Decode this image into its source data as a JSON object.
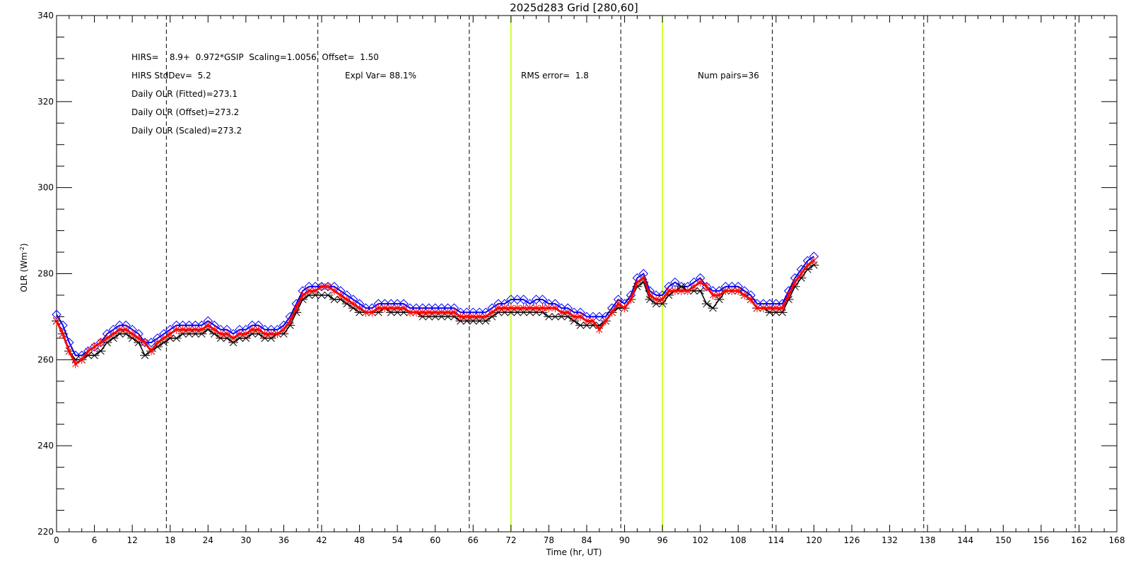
{
  "chart_data": {
    "type": "line",
    "title": "2025d283 Grid [280,60]",
    "xlabel": "Time (hr, UT)",
    "ylabel": "OLR (Wm",
    "ylabel_sup": "-2",
    "ylabel_close": ")",
    "xlim": [
      0,
      168
    ],
    "ylim": [
      220,
      340
    ],
    "xticks": [
      0,
      6,
      12,
      18,
      24,
      30,
      36,
      42,
      48,
      54,
      60,
      66,
      72,
      78,
      84,
      90,
      96,
      102,
      108,
      114,
      120,
      126,
      132,
      138,
      144,
      150,
      156,
      162,
      168
    ],
    "yticks": [
      220,
      240,
      260,
      280,
      300,
      320,
      340
    ],
    "dashed_vlines": [
      17.4,
      41.4,
      65.4,
      89.4,
      113.4,
      137.4,
      161.4
    ],
    "highlight_vlines": [
      72,
      96
    ],
    "colors": {
      "hirs": "#000000",
      "fitted": "#0000ff",
      "offset": "#ff0000",
      "highlight": "#c0ff00"
    },
    "annotations": [
      {
        "text": "HIRS=    8.9+  0.972*GSIP  Scaling=1.0056  Offset=  1.50"
      },
      {
        "text": "HIRS StdDev=  5.2"
      },
      {
        "text": "Expl Var= 88.1%"
      },
      {
        "text": "RMS error=  1.8"
      },
      {
        "text": "Num pairs=36"
      },
      {
        "text": "Daily OLR (Fitted)=273.1"
      },
      {
        "text": "Daily OLR (Offset)=273.2"
      },
      {
        "text": "Daily OLR (Scaled)=273.2"
      }
    ],
    "series": [
      {
        "x": [
          0,
          1,
          2,
          3,
          4,
          5,
          6,
          7,
          8,
          9,
          10,
          11,
          12,
          13,
          14,
          15,
          16,
          17,
          18,
          19,
          20,
          21,
          22,
          23,
          24,
          25,
          26,
          27,
          28,
          29,
          30,
          31,
          32,
          33,
          34,
          35,
          36,
          37,
          38,
          39,
          40,
          41,
          42,
          43,
          44,
          45,
          46,
          47,
          48,
          49,
          50,
          51,
          52,
          53,
          54,
          55,
          56,
          57,
          58,
          59,
          60,
          61,
          62,
          63,
          64,
          65,
          66,
          67,
          68,
          69,
          70,
          71,
          72,
          73,
          74,
          75,
          76,
          77,
          78,
          79,
          80,
          81,
          82,
          83,
          84,
          85,
          86,
          87,
          88,
          89,
          90,
          91,
          92,
          93,
          94,
          95,
          96,
          97,
          98,
          99,
          100,
          101,
          102,
          103,
          104,
          105,
          106,
          107,
          108,
          109,
          110,
          111,
          112,
          113,
          114,
          115,
          116,
          117,
          118,
          119,
          120
        ],
        "y": [
          269,
          266,
          262,
          260,
          260,
          261,
          261,
          262,
          264,
          265,
          266,
          266,
          265,
          264,
          261,
          262,
          263,
          264,
          265,
          265,
          266,
          266,
          266,
          266,
          267,
          266,
          265,
          265,
          264,
          265,
          265,
          266,
          266,
          265,
          265,
          266,
          266,
          268,
          271,
          274,
          275,
          275,
          275,
          275,
          274,
          274,
          273,
          272,
          271,
          271,
          271,
          271,
          272,
          271,
          271,
          271,
          271,
          271,
          270,
          270,
          270,
          270,
          270,
          270,
          269,
          269,
          269,
          269,
          269,
          270,
          271,
          271,
          271,
          271,
          271,
          271,
          271,
          271,
          270,
          270,
          270,
          270,
          269,
          268,
          268,
          268,
          268,
          269,
          271,
          272,
          272,
          274,
          277,
          278,
          274,
          273,
          273,
          275,
          276,
          277,
          276,
          276,
          276,
          273,
          272,
          274,
          276,
          276,
          276,
          275,
          274,
          272,
          272,
          271,
          271,
          271,
          274,
          277,
          279,
          281,
          282
        ]
      },
      {
        "x": [
          0,
          1,
          2,
          3,
          4,
          5,
          6,
          7,
          8,
          9,
          10,
          11,
          12,
          13,
          14,
          15,
          16,
          17,
          18,
          19,
          20,
          21,
          22,
          23,
          24,
          25,
          26,
          27,
          28,
          29,
          30,
          31,
          32,
          33,
          34,
          35,
          36,
          37,
          38,
          39,
          40,
          41,
          42,
          43,
          44,
          45,
          46,
          47,
          48,
          49,
          50,
          51,
          52,
          53,
          54,
          55,
          56,
          57,
          58,
          59,
          60,
          61,
          62,
          63,
          64,
          65,
          66,
          67,
          68,
          69,
          70,
          71,
          72,
          73,
          74,
          75,
          76,
          77,
          78,
          79,
          80,
          81,
          82,
          83,
          84,
          85,
          86,
          87,
          88,
          89,
          90,
          91,
          92,
          93,
          94,
          95,
          96,
          97,
          98,
          99,
          100,
          101,
          102,
          103,
          104,
          105,
          106,
          107,
          108,
          109,
          110,
          111,
          112,
          113,
          114,
          115,
          116,
          117,
          118,
          119,
          120
        ],
        "y": [
          270.5,
          268,
          264,
          261,
          261,
          262,
          263,
          264,
          266,
          267,
          268,
          268,
          267,
          266,
          264,
          264,
          265,
          266,
          267,
          268,
          268,
          268,
          268,
          268,
          269,
          268,
          267,
          267,
          266,
          267,
          267,
          268,
          268,
          267,
          267,
          267,
          268,
          270,
          273,
          276,
          277,
          277,
          277,
          277,
          277,
          276,
          275,
          274,
          273,
          272,
          272,
          273,
          273,
          273,
          273,
          273,
          272,
          272,
          272,
          272,
          272,
          272,
          272,
          272,
          271,
          271,
          271,
          271,
          271,
          272,
          273,
          273,
          274,
          274,
          274,
          273,
          274,
          274,
          273,
          273,
          272,
          272,
          271,
          271,
          270,
          270,
          270,
          270,
          272,
          274,
          273,
          275,
          279,
          280,
          276,
          275,
          275,
          277,
          278,
          277,
          277,
          278,
          279,
          277,
          276,
          276,
          277,
          277,
          277,
          276,
          275,
          273,
          273,
          273,
          273,
          273,
          276,
          279,
          281,
          283,
          284
        ]
      },
      {
        "x": [
          0,
          1,
          2,
          3,
          4,
          5,
          6,
          7,
          8,
          9,
          10,
          11,
          12,
          13,
          14,
          15,
          16,
          17,
          18,
          19,
          20,
          21,
          22,
          23,
          24,
          25,
          26,
          27,
          28,
          29,
          30,
          31,
          32,
          33,
          34,
          35,
          36,
          37,
          38,
          39,
          40,
          41,
          42,
          43,
          44,
          45,
          46,
          47,
          48,
          49,
          50,
          51,
          52,
          53,
          54,
          55,
          56,
          57,
          58,
          59,
          60,
          61,
          62,
          63,
          64,
          65,
          66,
          67,
          68,
          69,
          70,
          71,
          72,
          73,
          74,
          75,
          76,
          77,
          78,
          79,
          80,
          81,
          82,
          83,
          84,
          85,
          86,
          87,
          88,
          89,
          90,
          91,
          92,
          93,
          94,
          95,
          96,
          97,
          98,
          99,
          100,
          101,
          102,
          103,
          104,
          105,
          106,
          107,
          108,
          109,
          110,
          111,
          112,
          113,
          114,
          115,
          116,
          117,
          118,
          119,
          120
        ],
        "y": [
          269,
          266,
          262,
          259,
          260,
          262,
          263,
          264,
          265,
          266,
          267,
          267,
          266,
          265,
          264,
          262,
          264,
          265,
          266,
          267,
          267,
          267,
          267,
          267,
          268,
          267,
          266,
          266,
          265,
          266,
          266,
          267,
          267,
          266,
          266,
          266,
          267,
          269,
          272,
          275,
          276,
          276,
          277,
          277,
          276,
          275,
          274,
          273,
          272,
          271,
          271,
          272,
          272,
          272,
          272,
          272,
          271,
          271,
          271,
          271,
          271,
          271,
          271,
          271,
          270,
          270,
          270,
          270,
          270,
          271,
          272,
          272,
          272,
          272,
          272,
          272,
          272,
          272,
          272,
          272,
          271,
          271,
          270,
          270,
          269,
          269,
          267,
          269,
          271,
          273,
          272,
          274,
          278,
          279,
          275,
          274,
          274,
          276,
          276,
          276,
          276,
          277,
          278,
          277,
          275,
          275,
          276,
          276,
          276,
          275,
          274,
          272,
          272,
          272,
          272,
          272,
          275,
          278,
          280,
          282,
          283
        ]
      }
    ]
  }
}
